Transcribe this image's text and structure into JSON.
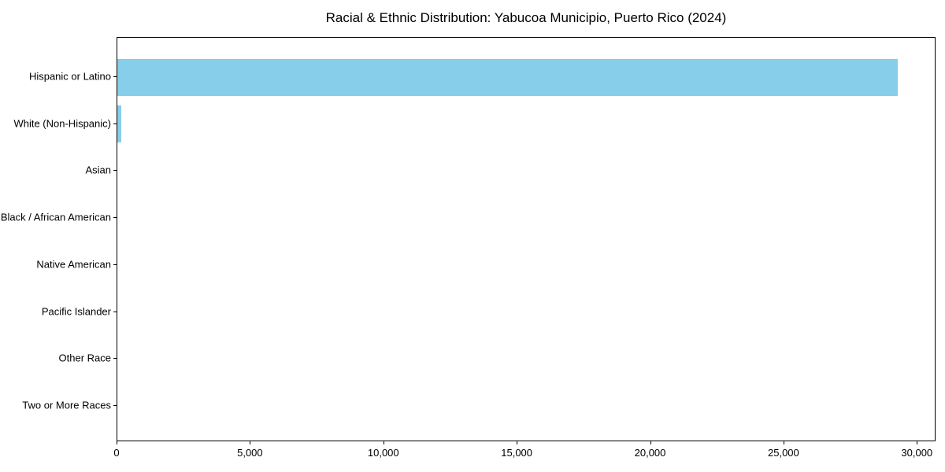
{
  "chart_data": {
    "type": "bar",
    "orientation": "horizontal",
    "title": "Racial & Ethnic Distribution: Yabucoa Municipio, Puerto Rico (2024)",
    "categories": [
      "Hispanic or Latino",
      "White (Non-Hispanic)",
      "Asian",
      "Black / African American",
      "Native American",
      "Pacific Islander",
      "Other Race",
      "Two or More Races"
    ],
    "values": [
      29240,
      150,
      0,
      0,
      0,
      0,
      0,
      0
    ],
    "xlabel": "",
    "ylabel": "",
    "xlim": [
      0,
      30700
    ],
    "x_ticks": [
      0,
      5000,
      10000,
      15000,
      20000,
      25000,
      30000
    ],
    "x_tick_labels": [
      "0",
      "5,000",
      "10,000",
      "15,000",
      "20,000",
      "25,000",
      "30,000"
    ],
    "bar_color": "#87CEEB",
    "background_color": "#ffffff",
    "axis_color": "#000000",
    "grid": false,
    "legend": null
  }
}
